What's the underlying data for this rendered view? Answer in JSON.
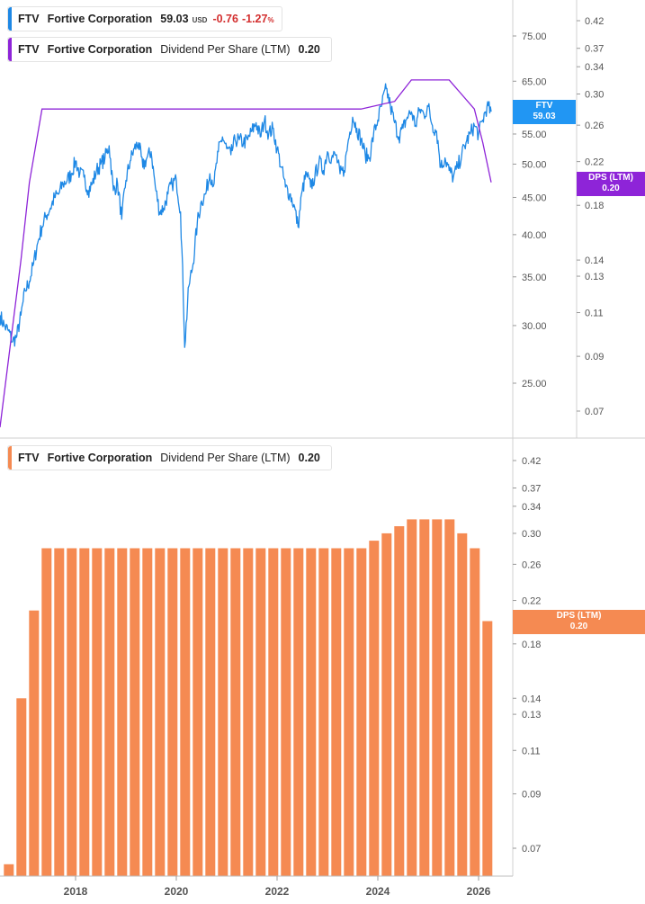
{
  "legend_price": {
    "ticker": "FTV",
    "name": "Fortive Corporation",
    "price": "59.03",
    "unit": "USD",
    "change": "-0.76",
    "change_pct": "-1.27",
    "pct_sign": "%"
  },
  "legend_dps_top": {
    "ticker": "FTV",
    "name": "Fortive Corporation",
    "metric": "Dividend Per Share (LTM)",
    "value": "0.20"
  },
  "legend_dps_bottom": {
    "ticker": "FTV",
    "name": "Fortive Corporation",
    "metric": "Dividend Per Share (LTM)",
    "value": "0.20"
  },
  "tags": {
    "price": {
      "line1": "FTV",
      "line2": "59.03"
    },
    "dps_top": {
      "line1": "DPS (LTM)",
      "line2": "0.20"
    },
    "dps_bottom": {
      "line1": "DPS (LTM)",
      "line2": "0.20"
    }
  },
  "colors": {
    "price": "#1e88e5",
    "dps_line": "#8e24d8",
    "bars": "#f58a52",
    "tag_blue": "#2196f3",
    "tag_purple": "#8e24d8",
    "tag_orange": "#f58a52"
  },
  "chart_data": [
    {
      "type": "line",
      "title": "",
      "x_range": [
        "2016-07",
        "2026-05"
      ],
      "x_ticks": [
        "2018",
        "2020",
        "2022",
        "2024",
        "2026"
      ],
      "y_left": {
        "scale": "log",
        "ticks": [
          "25.00",
          "30.00",
          "35.00",
          "40.00",
          "45.00",
          "50.00",
          "55.00",
          "65.00",
          "75.00"
        ]
      },
      "y_right": {
        "scale": "log",
        "ticks": [
          "0.07",
          "0.09",
          "0.11",
          "0.13",
          "0.14",
          "0.18",
          "0.22",
          "0.26",
          "0.30",
          "0.34",
          "0.37",
          "0.42"
        ]
      },
      "series": [
        {
          "axis": "left",
          "points": [
            [
              "2016-07",
              31.0
            ],
            [
              "2016-08",
              30.0
            ],
            [
              "2016-09",
              29.5
            ],
            [
              "2016-10",
              28.5
            ],
            [
              "2016-11",
              29.0
            ],
            [
              "2016-12",
              31.0
            ],
            [
              "2017-01",
              33.5
            ],
            [
              "2017-02",
              34.5
            ],
            [
              "2017-03",
              36.5
            ],
            [
              "2017-04",
              39.0
            ],
            [
              "2017-05",
              41.0
            ],
            [
              "2017-06",
              42.5
            ],
            [
              "2017-07",
              43.5
            ],
            [
              "2017-08",
              45.0
            ],
            [
              "2017-09",
              45.5
            ],
            [
              "2017-10",
              47.0
            ],
            [
              "2017-11",
              47.5
            ],
            [
              "2017-12",
              48.5
            ],
            [
              "2018-01",
              50.5
            ],
            [
              "2018-02",
              48.5
            ],
            [
              "2018-03",
              48.0
            ],
            [
              "2018-04",
              46.0
            ],
            [
              "2018-05",
              47.0
            ],
            [
              "2018-06",
              49.0
            ],
            [
              "2018-07",
              50.0
            ],
            [
              "2018-08",
              51.0
            ],
            [
              "2018-09",
              53.0
            ],
            [
              "2018-10",
              46.0
            ],
            [
              "2018-11",
              47.0
            ],
            [
              "2018-12",
              42.0
            ],
            [
              "2019-01",
              47.5
            ],
            [
              "2019-02",
              50.5
            ],
            [
              "2019-03",
              52.5
            ],
            [
              "2019-04",
              53.5
            ],
            [
              "2019-05",
              49.5
            ],
            [
              "2019-06",
              51.0
            ],
            [
              "2019-07",
              52.0
            ],
            [
              "2019-08",
              46.5
            ],
            [
              "2019-09",
              43.0
            ],
            [
              "2019-10",
              43.5
            ],
            [
              "2019-11",
              45.5
            ],
            [
              "2019-12",
              47.0
            ],
            [
              "2020-01",
              47.5
            ],
            [
              "2020-02",
              43.0
            ],
            [
              "2020-03",
              28.0
            ],
            [
              "2020-04",
              34.0
            ],
            [
              "2020-05",
              36.5
            ],
            [
              "2020-06",
              41.5
            ],
            [
              "2020-07",
              44.5
            ],
            [
              "2020-08",
              45.5
            ],
            [
              "2020-09",
              48.5
            ],
            [
              "2020-10",
              47.0
            ],
            [
              "2020-11",
              52.0
            ],
            [
              "2020-12",
              54.5
            ],
            [
              "2021-01",
              52.5
            ],
            [
              "2021-02",
              51.5
            ],
            [
              "2021-03",
              54.0
            ],
            [
              "2021-04",
              54.0
            ],
            [
              "2021-05",
              53.5
            ],
            [
              "2021-06",
              54.0
            ],
            [
              "2021-07",
              55.5
            ],
            [
              "2021-08",
              57.0
            ],
            [
              "2021-09",
              54.5
            ],
            [
              "2021-10",
              57.5
            ],
            [
              "2021-11",
              55.0
            ],
            [
              "2021-12",
              56.0
            ],
            [
              "2022-01",
              52.5
            ],
            [
              "2022-02",
              49.5
            ],
            [
              "2022-03",
              46.5
            ],
            [
              "2022-04",
              45.5
            ],
            [
              "2022-05",
              44.0
            ],
            [
              "2022-06",
              41.0
            ],
            [
              "2022-07",
              46.0
            ],
            [
              "2022-08",
              48.5
            ],
            [
              "2022-09",
              46.5
            ],
            [
              "2022-10",
              48.0
            ],
            [
              "2022-11",
              50.5
            ],
            [
              "2022-12",
              49.0
            ],
            [
              "2023-01",
              52.0
            ],
            [
              "2023-02",
              51.0
            ],
            [
              "2023-03",
              51.5
            ],
            [
              "2023-04",
              48.5
            ],
            [
              "2023-05",
              49.0
            ],
            [
              "2023-06",
              54.0
            ],
            [
              "2023-07",
              58.0
            ],
            [
              "2023-08",
              56.0
            ],
            [
              "2023-09",
              54.0
            ],
            [
              "2023-10",
              51.5
            ],
            [
              "2023-11",
              51.0
            ],
            [
              "2023-12",
              55.0
            ],
            [
              "2024-01",
              57.5
            ],
            [
              "2024-02",
              60.5
            ],
            [
              "2024-03",
              63.5
            ],
            [
              "2024-04",
              60.0
            ],
            [
              "2024-05",
              57.0
            ],
            [
              "2024-06",
              54.5
            ],
            [
              "2024-07",
              56.0
            ],
            [
              "2024-08",
              58.0
            ],
            [
              "2024-09",
              59.0
            ],
            [
              "2024-10",
              56.5
            ],
            [
              "2024-11",
              59.5
            ],
            [
              "2024-12",
              58.5
            ],
            [
              "2025-01",
              60.0
            ],
            [
              "2025-02",
              56.5
            ],
            [
              "2025-03",
              55.5
            ],
            [
              "2025-04",
              49.5
            ],
            [
              "2025-05",
              51.0
            ],
            [
              "2025-06",
              49.0
            ],
            [
              "2025-07",
              48.0
            ],
            [
              "2025-08",
              49.5
            ],
            [
              "2025-09",
              51.5
            ],
            [
              "2025-10",
              53.5
            ],
            [
              "2025-11",
              55.0
            ],
            [
              "2025-12",
              56.5
            ],
            [
              "2026-01",
              55.0
            ],
            [
              "2026-02",
              57.5
            ],
            [
              "2026-03",
              60.0
            ],
            [
              "2026-04",
              59.03
            ]
          ]
        },
        {
          "axis": "right",
          "points": [
            [
              "2016-07",
              0.065
            ],
            [
              "2016-12",
              0.14
            ],
            [
              "2017-02",
              0.2
            ],
            [
              "2017-05",
              0.28
            ],
            [
              "2023-09",
              0.28
            ],
            [
              "2024-05",
              0.29
            ],
            [
              "2024-09",
              0.32
            ],
            [
              "2025-06",
              0.32
            ],
            [
              "2025-12",
              0.28
            ],
            [
              "2026-02",
              0.24
            ],
            [
              "2026-04",
              0.2
            ]
          ]
        }
      ]
    },
    {
      "type": "bar",
      "title": "",
      "x_ticks": [
        "2018",
        "2020",
        "2022",
        "2024",
        "2026"
      ],
      "y_right": {
        "scale": "log",
        "ticks": [
          "0.07",
          "0.09",
          "0.11",
          "0.13",
          "0.14",
          "0.18",
          "0.22",
          "0.26",
          "0.30",
          "0.34",
          "0.37",
          "0.42"
        ]
      },
      "dates": [
        "2016-09",
        "2016-12",
        "2017-03",
        "2017-06",
        "2017-09",
        "2017-12",
        "2018-03",
        "2018-06",
        "2018-09",
        "2018-12",
        "2019-03",
        "2019-06",
        "2019-09",
        "2019-12",
        "2020-03",
        "2020-06",
        "2020-09",
        "2020-12",
        "2021-03",
        "2021-06",
        "2021-09",
        "2021-12",
        "2022-03",
        "2022-06",
        "2022-09",
        "2022-12",
        "2023-03",
        "2023-06",
        "2023-09",
        "2023-12",
        "2024-03",
        "2024-06",
        "2024-09",
        "2024-12",
        "2025-03",
        "2025-06",
        "2025-09",
        "2025-12",
        "2026-03"
      ],
      "values": [
        0.065,
        0.14,
        0.21,
        0.28,
        0.28,
        0.28,
        0.28,
        0.28,
        0.28,
        0.28,
        0.28,
        0.28,
        0.28,
        0.28,
        0.28,
        0.28,
        0.28,
        0.28,
        0.28,
        0.28,
        0.28,
        0.28,
        0.28,
        0.28,
        0.28,
        0.28,
        0.28,
        0.28,
        0.28,
        0.29,
        0.3,
        0.31,
        0.32,
        0.32,
        0.32,
        0.32,
        0.3,
        0.28,
        0.2
      ]
    }
  ]
}
